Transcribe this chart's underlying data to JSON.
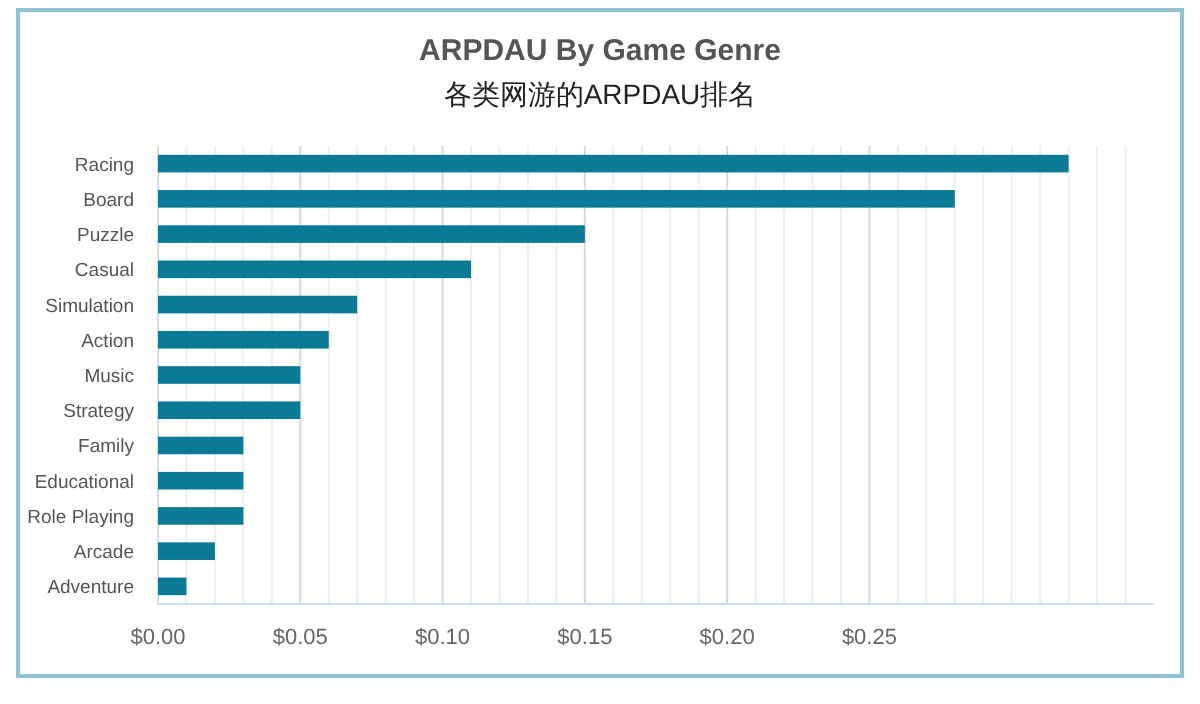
{
  "chart_data": {
    "type": "bar",
    "orientation": "horizontal",
    "title": "ARPDAU By Game Genre",
    "subtitle": "各类网游的ARPDAU排名",
    "categories": [
      "Racing",
      "Board",
      "Puzzle",
      "Casual",
      "Simulation",
      "Action",
      "Music",
      "Strategy",
      "Family",
      "Educational",
      "Role Playing",
      "Arcade",
      "Adventure"
    ],
    "values": [
      0.32,
      0.28,
      0.15,
      0.11,
      0.07,
      0.06,
      0.05,
      0.05,
      0.03,
      0.03,
      0.03,
      0.02,
      0.01
    ],
    "color": "#0b7b95",
    "xlim": [
      0,
      0.35
    ],
    "xticks": [
      {
        "value": 0,
        "label": "$0.00"
      },
      {
        "value": 0.01,
        "label": null
      },
      {
        "value": 0.02,
        "label": null
      },
      {
        "value": 0.03,
        "label": null
      },
      {
        "value": 0.04,
        "label": null
      },
      {
        "value": 0.05,
        "label": "$0.05"
      },
      {
        "value": 0.06,
        "label": null
      },
      {
        "value": 0.07,
        "label": null
      },
      {
        "value": 0.08,
        "label": null
      },
      {
        "value": 0.09,
        "label": null
      },
      {
        "value": 0.1,
        "label": "$0.10"
      },
      {
        "value": 0.11,
        "label": null
      },
      {
        "value": 0.12,
        "label": null
      },
      {
        "value": 0.13,
        "label": null
      },
      {
        "value": 0.14,
        "label": null
      },
      {
        "value": 0.15,
        "label": "$0.15"
      },
      {
        "value": 0.16,
        "label": null
      },
      {
        "value": 0.17,
        "label": null
      },
      {
        "value": 0.18,
        "label": null
      },
      {
        "value": 0.19,
        "label": null
      },
      {
        "value": 0.2,
        "label": "$0.20"
      },
      {
        "value": 0.21,
        "label": null
      },
      {
        "value": 0.22,
        "label": null
      },
      {
        "value": 0.23,
        "label": null
      },
      {
        "value": 0.24,
        "label": null
      },
      {
        "value": 0.25,
        "label": "$0.25"
      },
      {
        "value": 0.26,
        "label": null
      },
      {
        "value": 0.27,
        "label": null
      },
      {
        "value": 0.28,
        "label": null
      },
      {
        "value": 0.29,
        "label": null
      },
      {
        "value": 0.3,
        "label": null
      },
      {
        "value": 0.31,
        "label": null
      },
      {
        "value": 0.32,
        "label": null
      },
      {
        "value": 0.33,
        "label": null
      },
      {
        "value": 0.34,
        "label": null
      }
    ],
    "grid": "x"
  }
}
